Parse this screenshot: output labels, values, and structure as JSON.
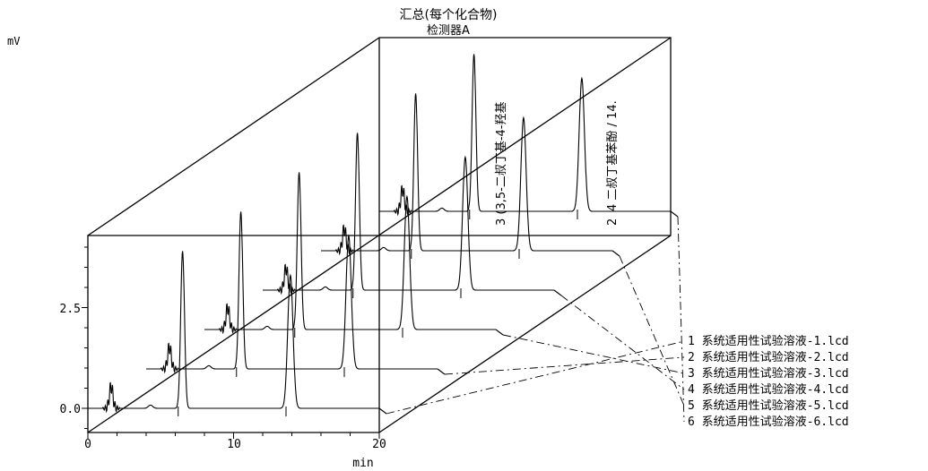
{
  "chart_data": {
    "type": "line",
    "title": "汇总(每个化合物)",
    "subtitle": "检测器A",
    "ylabel": "mV",
    "xlabel": "min",
    "xlim": [
      0,
      20
    ],
    "ylim": [
      -0.5,
      4.2
    ],
    "x_ticks": [
      {
        "value": 0,
        "label": "0"
      },
      {
        "value": 10,
        "label": "10"
      },
      {
        "value": 20,
        "label": "20"
      }
    ],
    "y_ticks": [
      {
        "value": 0,
        "label": "0.0"
      },
      {
        "value": 2.5,
        "label": "2.5"
      }
    ],
    "peak_labels": [
      "3 (3,5-二叔丁基-4-羟基",
      "4 二叔丁基苯酚 / 14.",
      "2"
    ],
    "series": [
      {
        "name": "1 系统适用性试验溶液-1.lcd",
        "peaks": [
          {
            "rt": 1.6,
            "height": 0.55
          },
          {
            "rt": 4.3,
            "height": 0.08
          },
          {
            "rt": 6.5,
            "height": 3.9
          },
          {
            "rt": 13.9,
            "height": 3.3
          }
        ]
      },
      {
        "name": "2 系统适用性试验溶液-2.lcd",
        "peaks": [
          {
            "rt": 1.6,
            "height": 0.55
          },
          {
            "rt": 4.3,
            "height": 0.08
          },
          {
            "rt": 6.5,
            "height": 3.9
          },
          {
            "rt": 13.9,
            "height": 3.3
          }
        ]
      },
      {
        "name": "3 系统适用性试验溶液-3.lcd",
        "peaks": [
          {
            "rt": 1.6,
            "height": 0.55
          },
          {
            "rt": 4.3,
            "height": 0.08
          },
          {
            "rt": 6.5,
            "height": 3.9
          },
          {
            "rt": 13.9,
            "height": 3.3
          }
        ]
      },
      {
        "name": "4 系统适用性试验溶液-4.lcd",
        "peaks": [
          {
            "rt": 1.6,
            "height": 0.55
          },
          {
            "rt": 4.3,
            "height": 0.08
          },
          {
            "rt": 6.5,
            "height": 3.9
          },
          {
            "rt": 13.9,
            "height": 3.3
          }
        ]
      },
      {
        "name": "5 系统适用性试验溶液-5.lcd",
        "peaks": [
          {
            "rt": 1.6,
            "height": 0.55
          },
          {
            "rt": 4.3,
            "height": 0.08
          },
          {
            "rt": 6.5,
            "height": 3.9
          },
          {
            "rt": 13.9,
            "height": 3.3
          }
        ]
      },
      {
        "name": "6 系统适用性试验溶液-6.lcd",
        "peaks": [
          {
            "rt": 1.6,
            "height": 0.55
          },
          {
            "rt": 4.3,
            "height": 0.08
          },
          {
            "rt": 6.5,
            "height": 3.9
          },
          {
            "rt": 13.9,
            "height": 3.3
          }
        ]
      }
    ]
  }
}
